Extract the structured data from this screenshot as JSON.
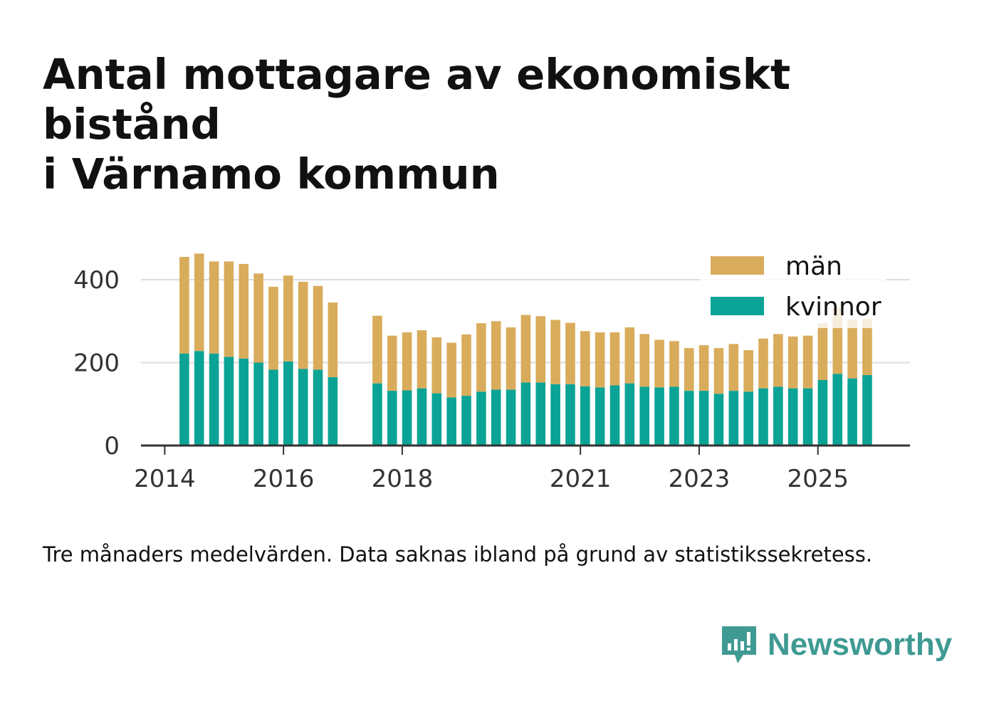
{
  "title_lines": [
    "Antal mottagare av ekonomiskt bistånd",
    "i Värnamo kommun"
  ],
  "footnote": "Tre månaders medelvärden. Data saknas ibland på grund av statistikssekretess.",
  "brand": {
    "name": "Newsworthy",
    "icon": "bar-chart-speech-bubble-icon",
    "color": "#3f9a93"
  },
  "chart_data": {
    "type": "bar",
    "stacked": true,
    "x_unit": "year (fractional, quarterly)",
    "xlim": [
      2013.6,
      2026.55
    ],
    "ylim": [
      0,
      470
    ],
    "yticks": [
      0,
      200,
      400
    ],
    "xticks": [
      2014,
      2016,
      2018,
      2021,
      2023,
      2025
    ],
    "grid": "horizontal",
    "legend": "top-right",
    "series": [
      {
        "name": "kvinnor",
        "color": "#0aa396",
        "x": [
          2014.33,
          2014.58,
          2014.83,
          2015.08,
          2015.33,
          2015.58,
          2015.83,
          2016.08,
          2016.33,
          2016.58,
          2016.83,
          2017.58,
          2017.83,
          2018.08,
          2018.33,
          2018.58,
          2018.83,
          2019.08,
          2019.33,
          2019.58,
          2019.83,
          2020.08,
          2020.33,
          2020.58,
          2020.83,
          2021.08,
          2021.33,
          2021.58,
          2021.83,
          2022.08,
          2022.33,
          2022.58,
          2022.83,
          2023.08,
          2023.33,
          2023.58,
          2023.83,
          2024.08,
          2024.33,
          2024.58,
          2024.83,
          2025.08,
          2025.33,
          2025.58,
          2025.83
        ],
        "values": [
          222,
          228,
          222,
          214,
          210,
          200,
          183,
          203,
          185,
          183,
          165,
          150,
          132,
          133,
          138,
          126,
          116,
          120,
          130,
          135,
          135,
          152,
          152,
          148,
          148,
          143,
          140,
          145,
          150,
          142,
          140,
          142,
          132,
          132,
          125,
          132,
          130,
          138,
          142,
          138,
          138,
          158,
          173,
          162,
          170
        ]
      },
      {
        "name": "män",
        "color": "#d9ac5c",
        "x": [
          2014.33,
          2014.58,
          2014.83,
          2015.08,
          2015.33,
          2015.58,
          2015.83,
          2016.08,
          2016.33,
          2016.58,
          2016.83,
          2017.58,
          2017.83,
          2018.08,
          2018.33,
          2018.58,
          2018.83,
          2019.08,
          2019.33,
          2019.58,
          2019.83,
          2020.08,
          2020.33,
          2020.58,
          2020.83,
          2021.08,
          2021.33,
          2021.58,
          2021.83,
          2022.08,
          2022.33,
          2022.58,
          2022.83,
          2023.08,
          2023.33,
          2023.58,
          2023.83,
          2024.08,
          2024.33,
          2024.58,
          2024.83,
          2025.08,
          2025.33,
          2025.58,
          2025.83
        ],
        "values": [
          233,
          235,
          222,
          230,
          228,
          215,
          200,
          207,
          210,
          202,
          180,
          163,
          133,
          140,
          140,
          135,
          132,
          148,
          165,
          165,
          150,
          163,
          160,
          155,
          148,
          133,
          133,
          128,
          135,
          127,
          115,
          110,
          103,
          110,
          110,
          113,
          100,
          120,
          127,
          125,
          127,
          137,
          160,
          142,
          135
        ]
      }
    ]
  }
}
